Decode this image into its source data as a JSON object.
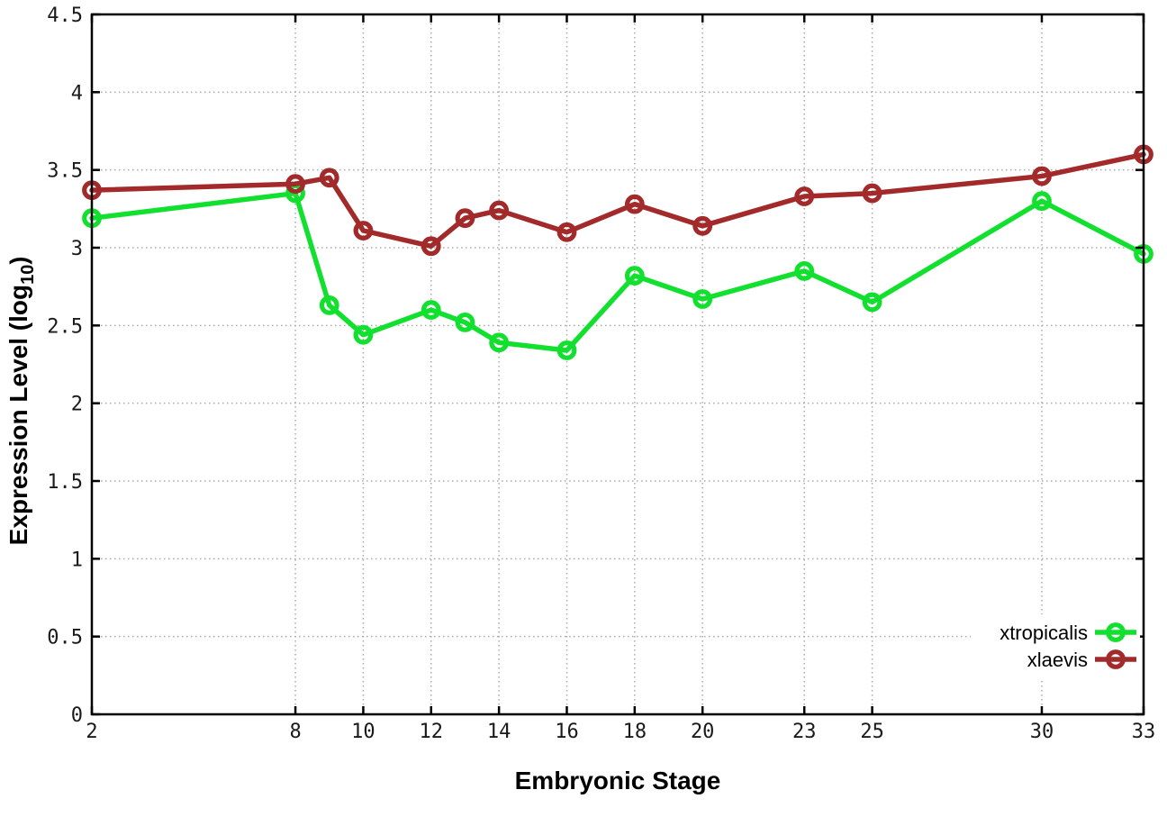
{
  "chart_data": {
    "type": "line",
    "title": "",
    "xlabel": "Embryonic Stage",
    "ylabel": "Expression Level (log10)",
    "ylabel_pre": "Expression Level (log",
    "ylabel_sub": "10",
    "ylabel_post": ")",
    "xlim": [
      2,
      33
    ],
    "ylim": [
      0,
      4.5
    ],
    "x_ticks": [
      2,
      8,
      10,
      12,
      14,
      16,
      18,
      20,
      23,
      25,
      30,
      33
    ],
    "y_ticks": [
      0,
      0.5,
      1,
      1.5,
      2,
      2.5,
      3,
      3.5,
      4,
      4.5
    ],
    "y_tick_labels": [
      "0",
      "0.5",
      "1",
      "1.5",
      "2",
      "2.5",
      "3",
      "3.5",
      "4",
      "4.5"
    ],
    "grid": true,
    "legend_position": "inside bottom-right",
    "x": [
      2,
      8,
      9,
      10,
      12,
      13,
      14,
      16,
      18,
      20,
      23,
      25,
      30,
      33
    ],
    "series": [
      {
        "name": "xtropicalis",
        "color": "#12e02e",
        "marker": "open-circle",
        "values": [
          3.19,
          3.35,
          2.63,
          2.44,
          2.6,
          2.52,
          2.39,
          2.34,
          2.82,
          2.67,
          2.85,
          2.65,
          3.3,
          2.96
        ]
      },
      {
        "name": "xlaevis",
        "color": "#a32a2a",
        "marker": "open-circle",
        "values": [
          3.37,
          3.41,
          3.45,
          3.11,
          3.01,
          3.19,
          3.24,
          3.1,
          3.28,
          3.14,
          3.33,
          3.35,
          3.46,
          3.6
        ]
      }
    ],
    "colors": {
      "axis": "#000000",
      "grid": "#aaaaaa",
      "background": "#ffffff",
      "text": "#000000"
    }
  }
}
